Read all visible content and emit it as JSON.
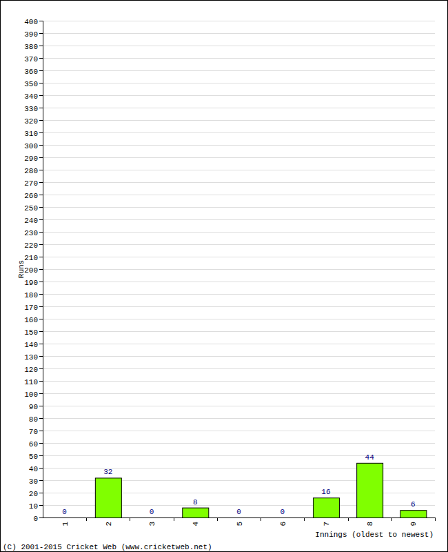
{
  "chart_data": {
    "type": "bar",
    "x_label": "Innings (oldest to newest)",
    "y_label": "Runs",
    "annotations": [
      "(C) 2001-2015 Cricket Web (www.cricketweb.net)"
    ],
    "categories": [
      "1",
      "2",
      "3",
      "4",
      "5",
      "6",
      "7",
      "8",
      "9"
    ],
    "values": [
      0,
      32,
      0,
      8,
      0,
      0,
      16,
      44,
      6
    ],
    "color": "#80ff00",
    "ylim": [
      0,
      400
    ],
    "yticks": [
      0,
      10,
      20,
      30,
      40,
      50,
      60,
      70,
      80,
      90,
      100,
      110,
      120,
      130,
      140,
      150,
      160,
      170,
      180,
      190,
      200,
      210,
      220,
      230,
      240,
      250,
      260,
      270,
      280,
      290,
      300,
      310,
      320,
      330,
      340,
      350,
      360,
      370,
      380,
      390,
      400
    ],
    "grid": true,
    "data_labels": true
  }
}
